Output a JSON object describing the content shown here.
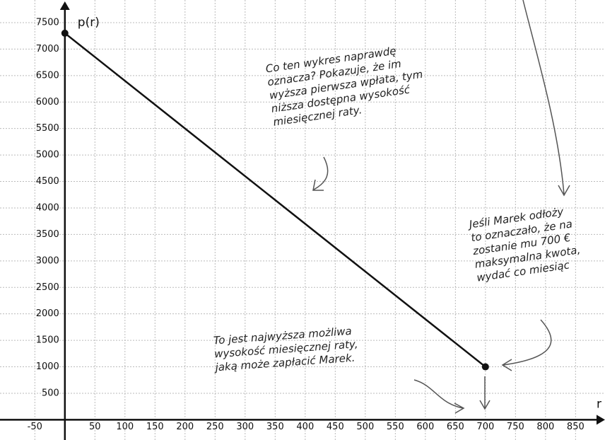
{
  "chart_data": {
    "type": "line",
    "x_label": "r",
    "y_label": "p(r)",
    "x": [
      0,
      700
    ],
    "series": [
      {
        "name": null,
        "color": "#111111",
        "values": [
          7300,
          1000
        ]
      }
    ],
    "xlim": [
      -108,
      899
    ],
    "ylim": [
      -382,
      7927
    ],
    "xticks": [
      -50,
      50,
      100,
      150,
      200,
      250,
      300,
      350,
      400,
      450,
      500,
      550,
      600,
      650,
      700,
      750,
      800,
      850
    ],
    "yticks": [
      500,
      1000,
      1500,
      2000,
      2500,
      3000,
      3500,
      4000,
      4500,
      5000,
      5500,
      6000,
      6500,
      7000,
      7500
    ],
    "grid": true,
    "annotations": [
      {
        "lines": [
          "Co ten wykres naprawdę",
          "oznacza? Pokazuje, że im",
          "wyższa pierwsza wpłata, tym",
          "niższa dostępna wysokość",
          "miesięcznej raty."
        ]
      },
      {
        "lines": [
          "Jeśli Marek odłoży",
          "to oznaczało, że na",
          "zostanie mu 700 €",
          "maksymalna kwota,",
          "wydać co miesiąc"
        ]
      },
      {
        "lines": [
          "To jest najwyższa możliwa",
          "wysokość miesięcznej raty,",
          "jaką może zapłacić Marek."
        ]
      }
    ]
  }
}
